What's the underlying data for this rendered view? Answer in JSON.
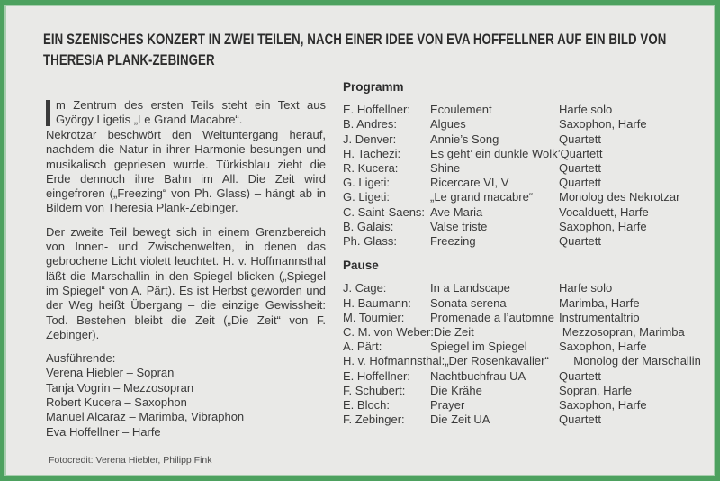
{
  "title": {
    "line1": "EIN SZENISCHES KONZERT IN ZWEI TEILEN, NACH EINER IDEE VON EVA HOFFELLNER AUF EIN BILD VON",
    "line2": "THERESIA PLANK-ZEBINGER"
  },
  "intro": {
    "drop_cap": "I",
    "para1_lead": "m Zentrum des ersten Teils steht ein Text aus György Ligetis „Le Grand Macabre“.",
    "para1_rest": "Nekrotzar beschwört den Weltuntergang herauf, nach­dem die Natur in ihrer Harmonie besungen und mu­sikalisch gepriesen wurde. Türkisblau zieht die Erde dennoch ihre Bahn im All. Die Zeit wird eingefroren („Freezing“ von Ph. Glass) – hängt ab in Bildern von Theresia Plank-Zebinger.",
    "para2": "Der zweite Teil bewegt sich in einem Grenzbereich von Innen- und Zwischenwelten, in denen das gebroche­ne Licht violett leuchtet. H. v. Hoffmannsthal läßt die Marschallin in den Spiegel blicken („Spiegel im Spie­gel“ von A. Pärt). Es ist Herbst geworden und der Weg heißt Übergang – die einzige Gewissheit: Tod. Beste­hen bleibt die Zeit („Die Zeit“ von F. Zebinger).",
    "performers_heading": "Ausführende:",
    "performers": [
      "Verena Hiebler – Sopran",
      "Tanja Vogrin – Mezzosopran",
      "Robert Kucera – Saxophon",
      "Manuel Alcaraz – Marimba, Vibraphon",
      "Eva Hoffellner – Harfe"
    ]
  },
  "program": {
    "heading": "Programm",
    "items": [
      {
        "composer": "E. Hoffellner:",
        "piece": "Ecoulement",
        "ensemble": "Harfe solo"
      },
      {
        "composer": "B. Andres:",
        "piece": "Algues",
        "ensemble": "Saxophon, Harfe"
      },
      {
        "composer": "J. Denver:",
        "piece": "Annie’s Song",
        "ensemble": "Quartett"
      },
      {
        "composer": "H. Tachezi:",
        "piece": "Es geht’ ein dunkle Wolk’",
        "ensemble": "Quartett"
      },
      {
        "composer": "R. Kucera:",
        "piece": "Shine",
        "ensemble": "Quartett"
      },
      {
        "composer": "G. Ligeti:",
        "piece": "Ricercare VI, V",
        "ensemble": "Quartett"
      },
      {
        "composer": "G. Ligeti:",
        "piece": "„Le grand macabre“",
        "ensemble": "Monolog des Nekrotzar"
      },
      {
        "composer": "C. Saint-Saens:",
        "piece": "Ave Maria",
        "ensemble": "Vocalduett, Harfe"
      },
      {
        "composer": "B. Galais:",
        "piece": "Valse triste",
        "ensemble": "Saxophon, Harfe"
      },
      {
        "composer": "Ph. Glass:",
        "piece": "Freezing",
        "ensemble": "Quartett"
      }
    ]
  },
  "pause": {
    "heading": "Pause",
    "items": [
      {
        "composer": "J. Cage:",
        "piece": "In a Landscape",
        "ensemble": "Harfe solo"
      },
      {
        "composer": "H. Baumann:",
        "piece": "Sonata serena",
        "ensemble": "Marimba, Harfe"
      },
      {
        "composer": "M. Tournier:",
        "piece": "Promenade a l’automne",
        "ensemble": "Instrumentaltrio"
      },
      {
        "composer": "C. M. von Weber:",
        "piece": "Die Zeit",
        "ensemble": "Mezzosopran, Marimba"
      },
      {
        "composer": "A. Pärt:",
        "piece": "Spiegel im Spiegel",
        "ensemble": "Saxophon, Harfe"
      },
      {
        "composer": "H. v. Hofmannsthal:",
        "piece": "„Der Rosenkavalier“",
        "ensemble": "Monolog der Marschallin"
      },
      {
        "composer": "E. Hoffellner:",
        "piece": "Nachtbuchfrau UA",
        "ensemble": "Quartett"
      },
      {
        "composer": "F. Schubert:",
        "piece": "Die Krähe",
        "ensemble": "Sopran, Harfe"
      },
      {
        "composer": "E. Bloch:",
        "piece": "Prayer",
        "ensemble": "Saxophon, Harfe"
      },
      {
        "composer": "F. Zebinger:",
        "piece": "Die Zeit UA",
        "ensemble": "Quartett"
      }
    ]
  },
  "footer": {
    "credit": "Fotocredit: Verena Hiebler, Philipp Fink"
  },
  "colors": {
    "border_green": "#4da15f",
    "background": "#e9e9e7",
    "text": "#3a3a3a"
  }
}
